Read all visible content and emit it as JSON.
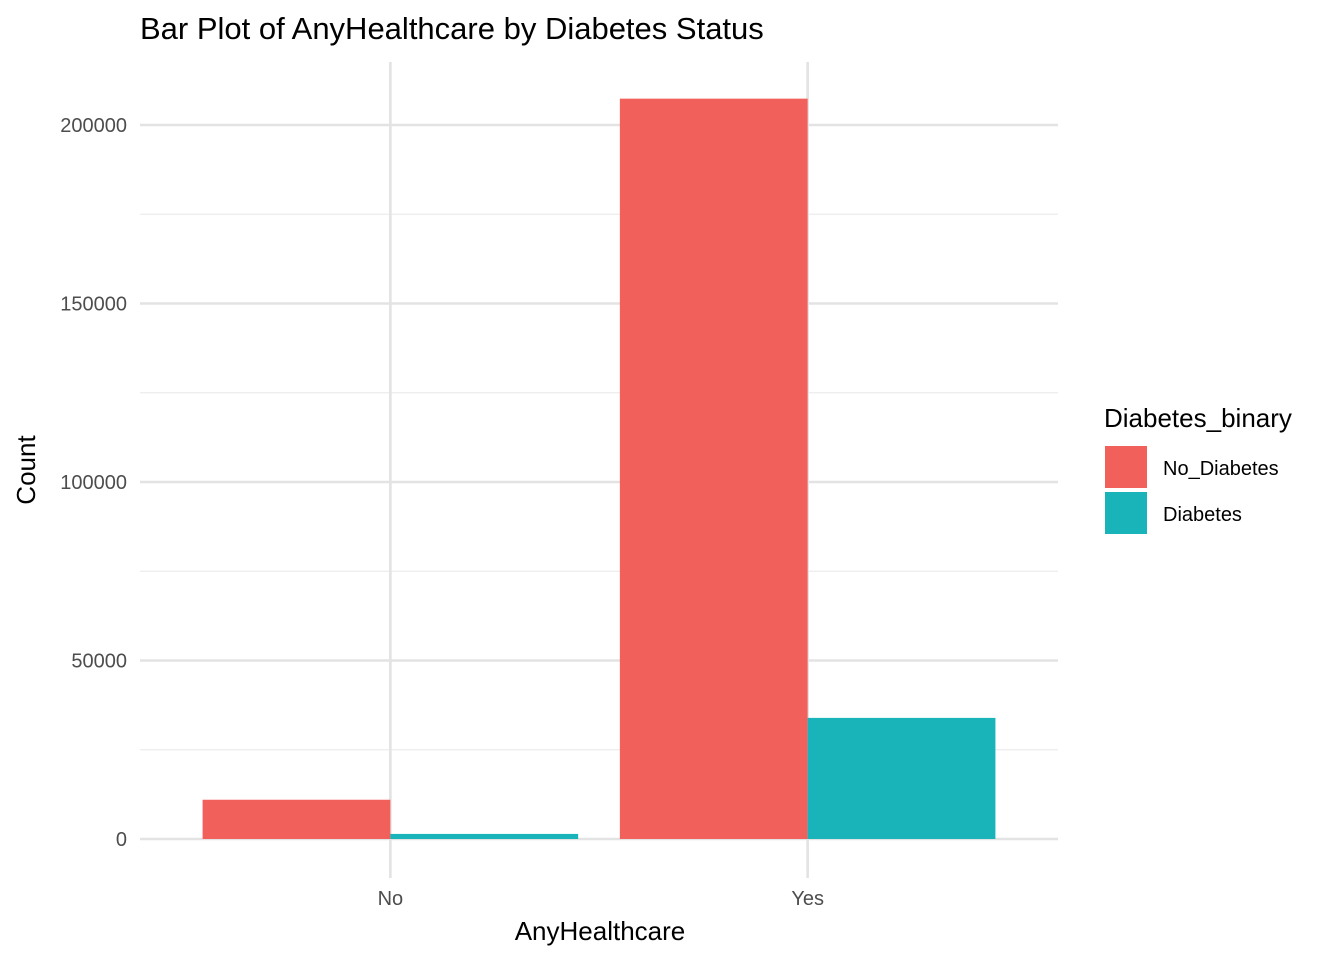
{
  "chart_data": {
    "type": "bar",
    "title": "Bar Plot of AnyHealthcare by Diabetes Status",
    "xlabel": "AnyHealthcare",
    "ylabel": "Count",
    "categories": [
      "No",
      "Yes"
    ],
    "series": [
      {
        "name": "No_Diabetes",
        "color": "#F2605B",
        "values": [
          10995,
          207381
        ]
      },
      {
        "name": "Diabetes",
        "color": "#19B4B9",
        "values": [
          1422,
          33924
        ]
      }
    ],
    "ylim": [
      0,
      218000
    ],
    "y_ticks": [
      0,
      50000,
      100000,
      150000,
      200000
    ],
    "y_tick_labels": [
      "0",
      "50000",
      "100000",
      "150000",
      "200000"
    ],
    "grid": true,
    "legend": {
      "title": "Diabetes_binary",
      "position": "right"
    }
  }
}
